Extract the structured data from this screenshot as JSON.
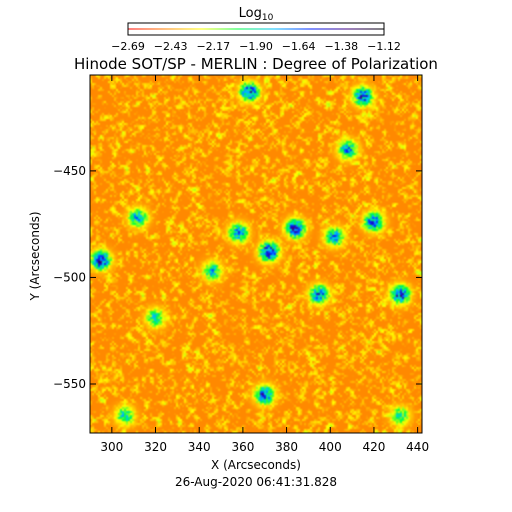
{
  "chart_data": {
    "type": "heatmap",
    "title": "Hinode SOT/SP - MERLIN : Degree of Polarization",
    "subtitle": "26-Aug-2020 06:41:31.828",
    "xlabel": "X (Arcseconds)",
    "ylabel": "Y (Arcseconds)",
    "xlim": [
      290,
      442
    ],
    "ylim": [
      -573,
      -405
    ],
    "x_ticks": [
      300,
      320,
      340,
      360,
      380,
      400,
      420,
      440
    ],
    "y_ticks": [
      -450,
      -500,
      -550
    ],
    "x_tick_labels": [
      "300",
      "320",
      "340",
      "360",
      "380",
      "400",
      "420",
      "440"
    ],
    "y_tick_labels": [
      "−450",
      "−500",
      "−550"
    ],
    "colorbar": {
      "title": "Log",
      "title_subscript": "10",
      "range": [
        -2.69,
        -1.12
      ],
      "tick_labels": [
        "−2.69",
        "−2.43",
        "−2.17",
        "−1.90",
        "−1.64",
        "−1.38",
        "−1.12"
      ],
      "colors": [
        "#ff0000",
        "#ff8000",
        "#ffff00",
        "#00ff40",
        "#00c0ff",
        "#0020ff",
        "#400080",
        "#000000"
      ]
    },
    "background_level": -2.45,
    "active_patches": [
      {
        "x": 372,
        "y": -488,
        "level": -1.45
      },
      {
        "x": 384,
        "y": -477,
        "level": -1.55
      },
      {
        "x": 358,
        "y": -479,
        "level": -1.7
      },
      {
        "x": 295,
        "y": -492,
        "level": -1.5
      },
      {
        "x": 312,
        "y": -472,
        "level": -1.8
      },
      {
        "x": 363,
        "y": -413,
        "level": -1.55
      },
      {
        "x": 415,
        "y": -415,
        "level": -1.6
      },
      {
        "x": 420,
        "y": -474,
        "level": -1.6
      },
      {
        "x": 402,
        "y": -481,
        "level": -1.75
      },
      {
        "x": 432,
        "y": -508,
        "level": -1.55
      },
      {
        "x": 395,
        "y": -508,
        "level": -1.65
      },
      {
        "x": 370,
        "y": -555,
        "level": -1.6
      },
      {
        "x": 320,
        "y": -519,
        "level": -1.9
      },
      {
        "x": 408,
        "y": -440,
        "level": -1.75
      },
      {
        "x": 346,
        "y": -497,
        "level": -1.85
      },
      {
        "x": 306,
        "y": -565,
        "level": -1.9
      },
      {
        "x": 432,
        "y": -565,
        "level": -1.95
      }
    ]
  }
}
